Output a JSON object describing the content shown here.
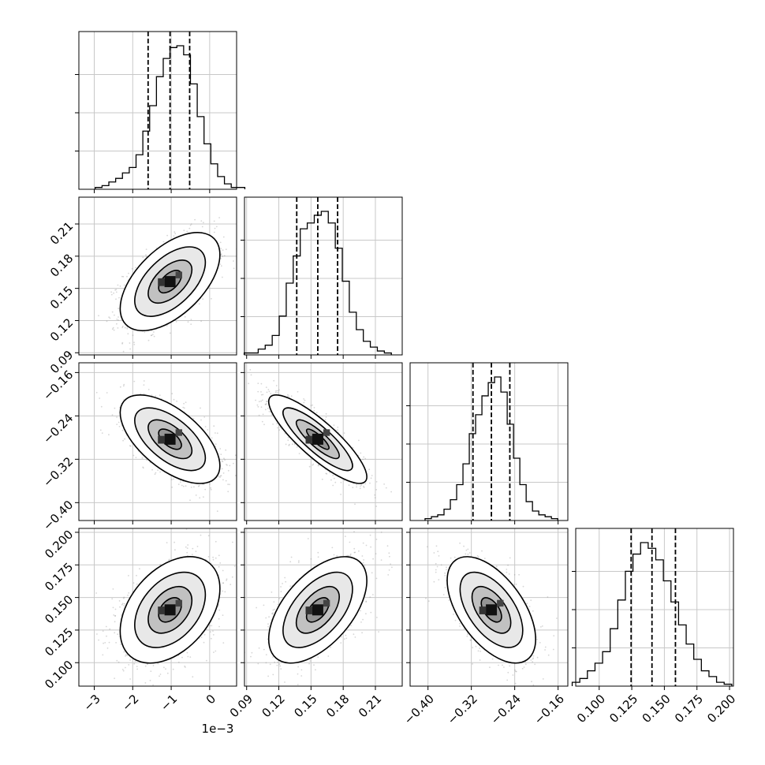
{
  "chart_data": {
    "type": "corner",
    "x_offset_label": "1e−3",
    "params": [
      {
        "range": [
          -3.4,
          0.7
        ],
        "ticks": [
          -3,
          -2,
          -1,
          0
        ],
        "tick_labels": [
          "−3",
          "−2",
          "−1",
          "0"
        ],
        "quantiles": [
          -1.6,
          -1.03,
          -0.52
        ],
        "hist": [
          1,
          2,
          4,
          6,
          9,
          12,
          19,
          32,
          46,
          62,
          72,
          78,
          79,
          74,
          58,
          40,
          25,
          14,
          7,
          3,
          1,
          1
        ]
      },
      {
        "range": [
          0.088,
          0.235
        ],
        "ticks": [
          0.09,
          0.12,
          0.15,
          0.18,
          0.21
        ],
        "tick_labels": [
          "0.09",
          "0.12",
          "0.15",
          "0.18",
          "0.21"
        ],
        "quantiles": [
          0.1367,
          0.1563,
          0.1748
        ],
        "hist": [
          1,
          1,
          3,
          5,
          10,
          20,
          37,
          51,
          65,
          68,
          72,
          74,
          68,
          55,
          38,
          22,
          13,
          7,
          4,
          2,
          1
        ]
      },
      {
        "range": [
          -0.433,
          -0.142
        ],
        "ticks": [
          -0.4,
          -0.32,
          -0.24,
          -0.16
        ],
        "tick_labels": [
          "−0.40",
          "−0.32",
          "−0.24",
          "−0.16"
        ],
        "quantiles": [
          -0.317,
          -0.283,
          -0.249
        ],
        "hist": [
          1,
          2,
          3,
          6,
          11,
          19,
          30,
          46,
          56,
          66,
          73,
          76,
          68,
          51,
          33,
          19,
          10,
          5,
          3,
          2,
          1
        ]
      },
      {
        "range": [
          0.082,
          0.203
        ],
        "ticks": [
          0.1,
          0.125,
          0.15,
          0.175,
          0.2
        ],
        "tick_labels": [
          "0.100",
          "0.125",
          "0.150",
          "0.175",
          "0.200"
        ],
        "quantiles": [
          0.1245,
          0.1405,
          0.1585
        ],
        "hist": [
          2,
          4,
          8,
          12,
          18,
          30,
          45,
          60,
          69,
          75,
          72,
          66,
          55,
          44,
          32,
          22,
          14,
          8,
          5,
          2,
          1
        ]
      }
    ]
  }
}
